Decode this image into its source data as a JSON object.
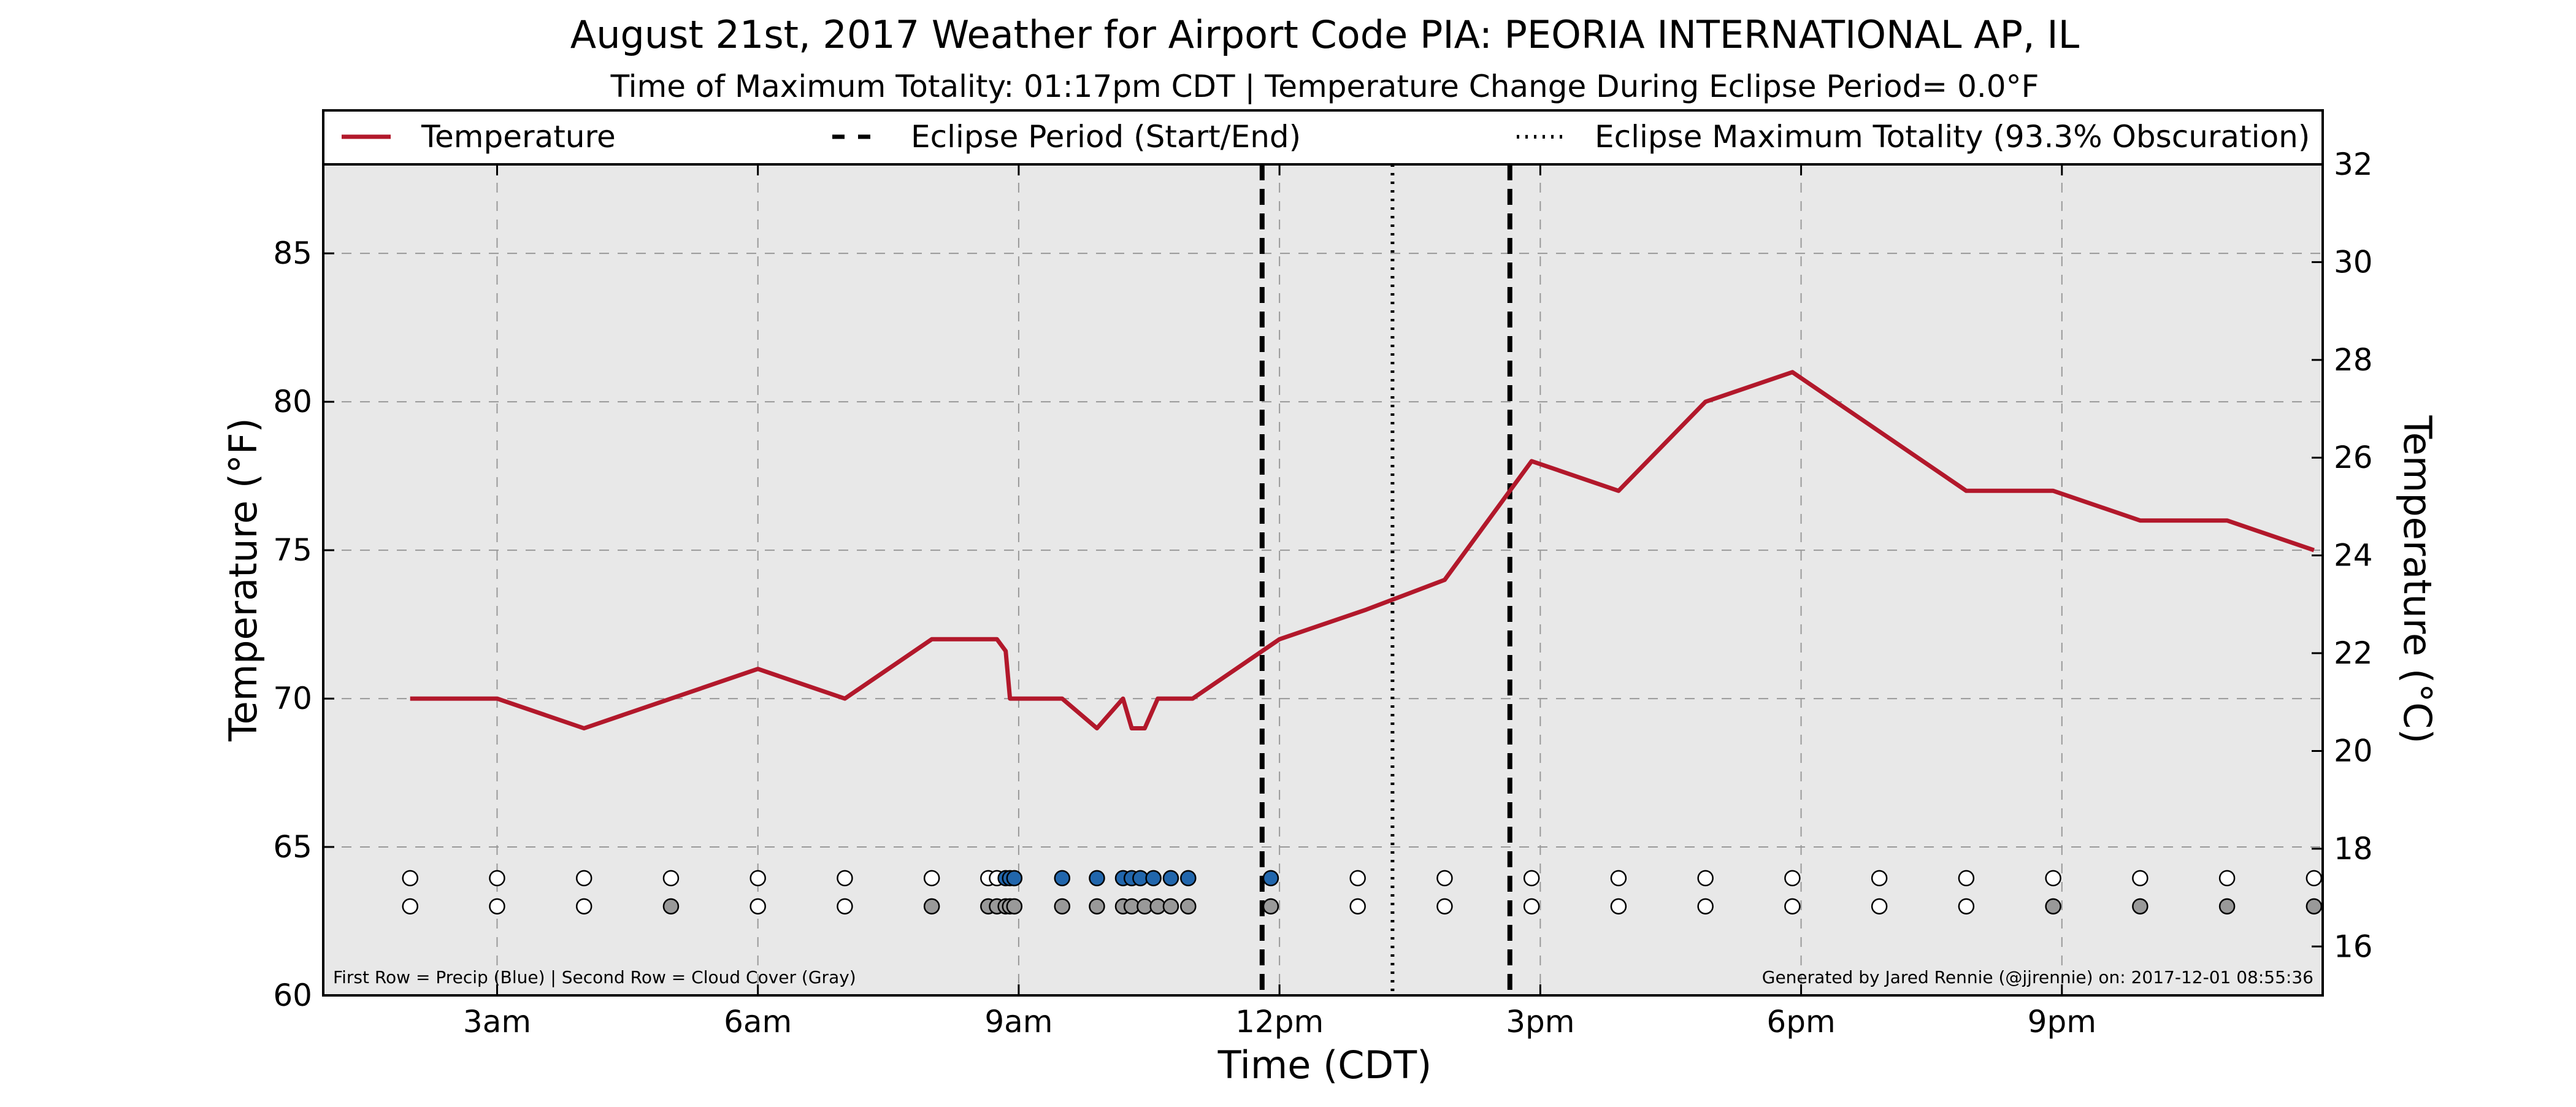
{
  "chart_data": {
    "type": "line",
    "title": "August 21st, 2017 Weather for Airport Code PIA: PEORIA INTERNATIONAL AP, IL",
    "subtitle": "Time of Maximum Totality: 01:17pm CDT | Temperature Change During Eclipse Period= 0.0$^\\circ$F",
    "subtitle_display": "Time of Maximum Totality: 01:17pm CDT | Temperature Change During Eclipse Period= 0.0°F",
    "xlabel": "Time (CDT)",
    "ylabel": "Temperature (°F)",
    "ylabel_right": "Temperature (°C)",
    "xlim": [
      1.0,
      24.0
    ],
    "ylim": [
      60,
      88
    ],
    "ylim_right": [
      15.0,
      32.0
    ],
    "x_ticks": [
      {
        "x": 3,
        "label": "3am"
      },
      {
        "x": 6,
        "label": "6am"
      },
      {
        "x": 9,
        "label": "9am"
      },
      {
        "x": 12,
        "label": "12pm"
      },
      {
        "x": 15,
        "label": "3pm"
      },
      {
        "x": 18,
        "label": "6pm"
      },
      {
        "x": 21,
        "label": "9pm"
      }
    ],
    "y_ticks": [
      60,
      65,
      70,
      75,
      80,
      85
    ],
    "y_ticks_right": [
      16,
      18,
      20,
      22,
      24,
      26,
      28,
      30,
      32
    ],
    "grid": true,
    "legend_position": "top",
    "legend": [
      {
        "label": "Temperature",
        "style": "solid",
        "color": "#b2182b"
      },
      {
        "label": "Eclipse Period (Start/End)",
        "style": "dashed",
        "color": "#000000"
      },
      {
        "label": "Eclipse Maximum Totality (93.3% Obscuration)",
        "style": "dotted",
        "color": "#000000"
      }
    ],
    "series": [
      {
        "name": "Temperature",
        "color": "#b2182b",
        "x": [
          2.0,
          3.0,
          4.0,
          5.0,
          6.0,
          7.0,
          8.0,
          8.75,
          8.85,
          8.9,
          9.5,
          9.9,
          10.2,
          10.3,
          10.45,
          10.6,
          11.0,
          12.0,
          13.0,
          13.9,
          14.9,
          15.9,
          16.9,
          17.9,
          18.9,
          19.9,
          20.9,
          21.9,
          22.9,
          23.9
        ],
        "values": [
          70,
          70,
          69,
          70,
          71,
          70,
          72,
          72,
          71.6,
          70,
          70,
          69,
          70,
          69,
          69,
          70,
          70,
          72,
          73,
          74,
          78,
          77,
          80,
          81,
          79,
          77,
          77,
          76,
          76,
          75
        ]
      }
    ],
    "eclipse_start": 11.8,
    "eclipse_end": 14.65,
    "max_totality": 13.3,
    "precip_row": {
      "y": 63.95,
      "colors": {
        "none": "#ffffff",
        "precip": "#2166ac"
      },
      "points": [
        {
          "x": 2.0,
          "v": "none"
        },
        {
          "x": 3.0,
          "v": "none"
        },
        {
          "x": 4.0,
          "v": "none"
        },
        {
          "x": 5.0,
          "v": "none"
        },
        {
          "x": 6.0,
          "v": "none"
        },
        {
          "x": 7.0,
          "v": "none"
        },
        {
          "x": 8.0,
          "v": "none"
        },
        {
          "x": 8.65,
          "v": "none"
        },
        {
          "x": 8.75,
          "v": "none"
        },
        {
          "x": 8.85,
          "v": "precip"
        },
        {
          "x": 8.9,
          "v": "precip"
        },
        {
          "x": 8.95,
          "v": "precip"
        },
        {
          "x": 9.5,
          "v": "precip"
        },
        {
          "x": 9.9,
          "v": "precip"
        },
        {
          "x": 10.2,
          "v": "precip"
        },
        {
          "x": 10.3,
          "v": "precip"
        },
        {
          "x": 10.4,
          "v": "precip"
        },
        {
          "x": 10.55,
          "v": "precip"
        },
        {
          "x": 10.75,
          "v": "precip"
        },
        {
          "x": 10.95,
          "v": "precip"
        },
        {
          "x": 11.9,
          "v": "precip"
        },
        {
          "x": 12.9,
          "v": "none"
        },
        {
          "x": 13.9,
          "v": "none"
        },
        {
          "x": 14.9,
          "v": "none"
        },
        {
          "x": 15.9,
          "v": "none"
        },
        {
          "x": 16.9,
          "v": "none"
        },
        {
          "x": 17.9,
          "v": "none"
        },
        {
          "x": 18.9,
          "v": "none"
        },
        {
          "x": 19.9,
          "v": "none"
        },
        {
          "x": 20.9,
          "v": "none"
        },
        {
          "x": 21.9,
          "v": "none"
        },
        {
          "x": 22.9,
          "v": "none"
        },
        {
          "x": 23.9,
          "v": "none"
        }
      ]
    },
    "cloud_row": {
      "y": 63.0,
      "colors": {
        "clear": "#ffffff",
        "cloudy": "#999999"
      },
      "points": [
        {
          "x": 2.0,
          "v": "clear"
        },
        {
          "x": 3.0,
          "v": "clear"
        },
        {
          "x": 4.0,
          "v": "clear"
        },
        {
          "x": 5.0,
          "v": "cloudy"
        },
        {
          "x": 6.0,
          "v": "clear"
        },
        {
          "x": 7.0,
          "v": "clear"
        },
        {
          "x": 8.0,
          "v": "cloudy"
        },
        {
          "x": 8.65,
          "v": "cloudy"
        },
        {
          "x": 8.75,
          "v": "cloudy"
        },
        {
          "x": 8.85,
          "v": "cloudy"
        },
        {
          "x": 8.9,
          "v": "cloudy"
        },
        {
          "x": 8.95,
          "v": "cloudy"
        },
        {
          "x": 9.5,
          "v": "cloudy"
        },
        {
          "x": 9.9,
          "v": "cloudy"
        },
        {
          "x": 10.2,
          "v": "cloudy"
        },
        {
          "x": 10.3,
          "v": "cloudy"
        },
        {
          "x": 10.45,
          "v": "cloudy"
        },
        {
          "x": 10.6,
          "v": "cloudy"
        },
        {
          "x": 10.75,
          "v": "cloudy"
        },
        {
          "x": 10.95,
          "v": "cloudy"
        },
        {
          "x": 11.9,
          "v": "cloudy"
        },
        {
          "x": 12.9,
          "v": "clear"
        },
        {
          "x": 13.9,
          "v": "clear"
        },
        {
          "x": 14.9,
          "v": "clear"
        },
        {
          "x": 15.9,
          "v": "clear"
        },
        {
          "x": 16.9,
          "v": "clear"
        },
        {
          "x": 17.9,
          "v": "clear"
        },
        {
          "x": 18.9,
          "v": "clear"
        },
        {
          "x": 19.9,
          "v": "clear"
        },
        {
          "x": 20.9,
          "v": "cloudy"
        },
        {
          "x": 21.9,
          "v": "cloudy"
        },
        {
          "x": 22.9,
          "v": "cloudy"
        },
        {
          "x": 23.9,
          "v": "cloudy"
        }
      ]
    },
    "footnote_left": "First Row = Precip (Blue) | Second Row = Cloud Cover (Gray)",
    "footnote_right": "Generated by Jared Rennie (@jjrennie) on: 2017-12-01 08:55:36",
    "plot_background": "#e8e8e8"
  }
}
